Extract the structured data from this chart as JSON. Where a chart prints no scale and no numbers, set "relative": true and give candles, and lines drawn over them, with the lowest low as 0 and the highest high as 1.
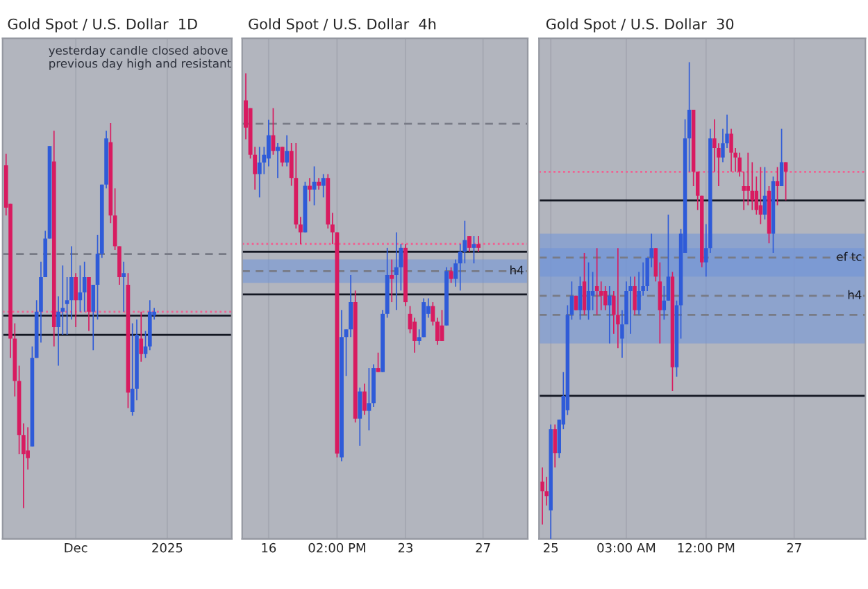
{
  "chart_data": [
    {
      "type": "candlestick",
      "title": "Gold Spot / U.S. Dollar  1D",
      "relative": true,
      "grid": "x",
      "colors": [
        "#d81b60",
        "#d81b60",
        "#d81b60",
        "#d81b60",
        "#d81b60",
        "#d81b60",
        "#2f5bd8",
        "#2f5bd8",
        "#2f5bd8",
        "#2f5bd8",
        "#2f5bd8",
        "#d81b60",
        "#2f5bd8",
        "#2f5bd8",
        "#2f5bd8",
        "#2f5bd8",
        "#d81b60",
        "#2f5bd8",
        "#2f5bd8",
        "#d81b60",
        "#2f5bd8",
        "#2f5bd8",
        "#2f5bd8",
        "#2f5bd8",
        "#d81b60",
        "#d81b60",
        "#d81b60",
        "#2f5bd8",
        "#d81b60",
        "#2f5bd8",
        "#2f5bd8",
        "#d81b60",
        "#2f5bd8",
        "#2f5bd8",
        "#2f5bd8",
        null,
        null,
        null,
        null,
        null,
        null,
        null,
        null,
        null,
        null,
        null,
        null,
        null,
        null,
        null,
        null,
        null
      ],
      "categories": [
        null,
        null,
        null,
        null,
        null,
        null,
        null,
        null,
        null,
        null,
        null,
        null,
        null,
        null,
        null,
        null,
        "Dec",
        null,
        null,
        null,
        null,
        null,
        null,
        null,
        null,
        null,
        null,
        null,
        null,
        null,
        null,
        null,
        null,
        null,
        null,
        null,
        null,
        "2025",
        null,
        null,
        null,
        null,
        null,
        null,
        null,
        null,
        null,
        null,
        null,
        null,
        null,
        null
      ],
      "ohlc": [
        [
          0.89,
          0.92,
          0.76,
          0.78
        ],
        [
          0.79,
          0.79,
          0.39,
          0.44
        ],
        [
          0.44,
          0.48,
          0.29,
          0.33
        ],
        [
          0.33,
          0.37,
          0.14,
          0.19
        ],
        [
          0.19,
          0.22,
          0.0,
          0.14
        ],
        [
          0.15,
          0.21,
          0.1,
          0.13
        ],
        [
          0.16,
          0.42,
          0.16,
          0.39
        ],
        [
          0.39,
          0.54,
          0.39,
          0.51
        ],
        [
          0.51,
          0.64,
          0.43,
          0.6
        ],
        [
          0.6,
          0.72,
          0.6,
          0.7
        ],
        [
          0.7,
          0.94,
          0.7,
          0.94
        ],
        [
          0.9,
          0.98,
          0.42,
          0.47
        ],
        [
          0.47,
          0.55,
          0.37,
          0.51
        ],
        [
          0.51,
          0.63,
          0.45,
          0.52
        ],
        [
          0.53,
          0.6,
          0.45,
          0.54
        ],
        [
          0.54,
          0.68,
          0.49,
          0.6
        ],
        [
          0.6,
          0.61,
          0.47,
          0.54
        ],
        [
          0.54,
          0.63,
          0.51,
          0.56
        ],
        [
          0.56,
          0.64,
          0.51,
          0.6
        ],
        [
          0.6,
          0.6,
          0.46,
          0.51
        ],
        [
          0.51,
          0.58,
          0.41,
          0.58
        ],
        [
          0.58,
          0.71,
          0.49,
          0.66
        ],
        [
          0.66,
          0.84,
          0.65,
          0.84
        ],
        [
          0.84,
          0.98,
          0.83,
          0.96
        ],
        [
          0.95,
          1.0,
          0.74,
          0.76
        ],
        [
          0.76,
          0.83,
          0.67,
          0.68
        ],
        [
          0.68,
          0.68,
          0.58,
          0.6
        ],
        [
          0.6,
          0.64,
          0.51,
          0.61
        ],
        [
          0.58,
          0.61,
          0.26,
          0.3
        ],
        [
          0.25,
          0.48,
          0.24,
          0.31
        ],
        [
          0.31,
          0.49,
          0.28,
          0.45
        ],
        [
          0.44,
          0.51,
          0.38,
          0.4
        ],
        [
          0.4,
          0.46,
          0.39,
          0.42
        ],
        [
          0.42,
          0.54,
          0.41,
          0.51
        ],
        [
          0.5,
          0.52,
          0.49,
          0.51
        ],
        null,
        null,
        null,
        null,
        null,
        null,
        null,
        null,
        null,
        null,
        null,
        null,
        null,
        null,
        null,
        null,
        null
      ],
      "ref_lines": [
        {
          "axis": "y",
          "value": 0.66,
          "color": "#787b86",
          "line_style": "dashed"
        },
        {
          "axis": "y",
          "value": 0.51,
          "color": "#f06292",
          "line_style": "dotted"
        },
        {
          "axis": "y",
          "value": 0.5,
          "color": "#131722",
          "line_style": "solid"
        },
        {
          "axis": "y",
          "value": 0.45,
          "color": "#131722",
          "line_style": "solid"
        }
      ],
      "annotations": [
        "yesterday candle closed above\nprevious day high and resistant"
      ]
    },
    {
      "type": "candlestick",
      "title": "Gold Spot / U.S. Dollar  4h",
      "relative": true,
      "grid": "x",
      "colors": [
        "#d81b60",
        "#d81b60",
        "#d81b60",
        "#2f5bd8",
        "#2f5bd8",
        "#2f5bd8",
        "#d81b60",
        "#2f5bd8",
        "#d81b60",
        "#2f5bd8",
        "#d81b60",
        "#d81b60",
        "#d81b60",
        "#2f5bd8",
        "#d81b60",
        "#2f5bd8",
        "#d81b60",
        "#2f5bd8",
        "#d81b60",
        "#d81b60",
        "#d81b60",
        "#2f5bd8",
        "#2f5bd8",
        "#2f5bd8",
        "#d81b60",
        "#2f5bd8",
        "#d81b60",
        "#2f5bd8",
        "#2f5bd8",
        "#d81b60",
        "#2f5bd8",
        "#2f5bd8",
        "#d81b60",
        "#2f5bd8",
        "#2f5bd8",
        "#d81b60",
        "#d81b60",
        "#d81b60",
        "#2f5bd8",
        "#2f5bd8",
        "#2f5bd8",
        "#d81b60",
        "#d81b60",
        "#d81b60",
        "#2f5bd8",
        "#d81b60",
        "#2f5bd8",
        "#2f5bd8",
        "#2f5bd8",
        "#d81b60",
        "#2f5bd8",
        "#d81b60",
        null,
        null,
        null,
        null,
        null,
        null,
        null,
        null,
        null,
        null
      ],
      "categories": [
        null,
        null,
        null,
        null,
        null,
        "16",
        null,
        null,
        null,
        null,
        null,
        null,
        null,
        null,
        null,
        null,
        null,
        null,
        null,
        null,
        "02:00 PM",
        null,
        null,
        null,
        null,
        null,
        null,
        null,
        null,
        null,
        null,
        null,
        null,
        null,
        null,
        "23",
        null,
        null,
        null,
        null,
        null,
        null,
        null,
        null,
        null,
        null,
        null,
        null,
        null,
        null,
        null,
        null,
        "27",
        null,
        null,
        null,
        null,
        null,
        null,
        null,
        null,
        null
      ],
      "ohlc": [
        [
          0.93,
          1.0,
          0.83,
          0.86
        ],
        [
          0.91,
          0.91,
          0.78,
          0.79
        ],
        [
          0.79,
          0.81,
          0.7,
          0.74
        ],
        [
          0.74,
          0.81,
          0.68,
          0.77
        ],
        [
          0.77,
          0.81,
          0.74,
          0.79
        ],
        [
          0.78,
          0.88,
          0.76,
          0.84
        ],
        [
          0.84,
          0.91,
          0.79,
          0.8
        ],
        [
          0.8,
          0.82,
          0.73,
          0.81
        ],
        [
          0.81,
          0.81,
          0.76,
          0.77
        ],
        [
          0.77,
          0.84,
          0.76,
          0.8
        ],
        [
          0.8,
          0.82,
          0.71,
          0.73
        ],
        [
          0.73,
          0.82,
          0.6,
          0.61
        ],
        [
          0.61,
          0.63,
          0.56,
          0.59
        ],
        [
          0.59,
          0.72,
          0.59,
          0.71
        ],
        [
          0.71,
          0.73,
          0.67,
          0.7
        ],
        [
          0.7,
          0.76,
          0.66,
          0.72
        ],
        [
          0.72,
          0.73,
          0.7,
          0.71
        ],
        [
          0.71,
          0.74,
          0.68,
          0.73
        ],
        [
          0.73,
          0.74,
          0.6,
          0.61
        ],
        [
          0.61,
          0.64,
          0.56,
          0.59
        ],
        [
          0.59,
          0.59,
          0.01,
          0.02
        ],
        [
          0.01,
          0.39,
          0.0,
          0.32
        ],
        [
          0.32,
          0.34,
          0.22,
          0.34
        ],
        [
          0.34,
          0.48,
          0.32,
          0.41
        ],
        [
          0.41,
          0.44,
          0.1,
          0.11
        ],
        [
          0.11,
          0.19,
          0.04,
          0.18
        ],
        [
          0.18,
          0.2,
          0.12,
          0.13
        ],
        [
          0.13,
          0.24,
          0.08,
          0.15
        ],
        [
          0.15,
          0.25,
          0.14,
          0.24
        ],
        [
          0.24,
          0.28,
          0.23,
          0.23
        ],
        [
          0.23,
          0.39,
          0.23,
          0.38
        ],
        [
          0.38,
          0.55,
          0.37,
          0.48
        ],
        [
          0.48,
          0.52,
          0.41,
          0.47
        ],
        [
          0.48,
          0.59,
          0.39,
          0.5
        ],
        [
          0.5,
          0.56,
          0.44,
          0.55
        ],
        [
          0.55,
          0.56,
          0.4,
          0.41
        ],
        [
          0.38,
          0.4,
          0.33,
          0.34
        ],
        [
          0.36,
          0.37,
          0.28,
          0.31
        ],
        [
          0.31,
          0.34,
          0.3,
          0.32
        ],
        [
          0.32,
          0.42,
          0.32,
          0.41
        ],
        [
          0.38,
          0.42,
          0.37,
          0.4
        ],
        [
          0.4,
          0.41,
          0.35,
          0.36
        ],
        [
          0.36,
          0.37,
          0.3,
          0.31
        ],
        [
          0.35,
          0.39,
          0.31,
          0.31
        ],
        [
          0.35,
          0.5,
          0.35,
          0.49
        ],
        [
          0.49,
          0.5,
          0.46,
          0.47
        ],
        [
          0.47,
          0.52,
          0.45,
          0.51
        ],
        [
          0.51,
          0.56,
          0.44,
          0.54
        ],
        [
          0.54,
          0.62,
          0.51,
          0.57
        ],
        [
          0.58,
          0.58,
          0.54,
          0.55
        ],
        [
          0.55,
          0.58,
          0.51,
          0.56
        ],
        [
          0.56,
          0.58,
          0.54,
          0.55
        ],
        null,
        null,
        null,
        null,
        null,
        null,
        null,
        null,
        null,
        null
      ],
      "ref_lines": [
        {
          "axis": "y",
          "value": 0.87,
          "color": "#787b86",
          "line_style": "dashed"
        },
        {
          "axis": "y",
          "value": 0.56,
          "color": "#f06292",
          "line_style": "dotted"
        },
        {
          "axis": "y",
          "value": 0.54,
          "color": "#131722",
          "line_style": "solid"
        },
        {
          "axis": "y",
          "value": 0.43,
          "color": "#131722",
          "line_style": "solid"
        },
        {
          "axis": "y",
          "value": 0.49,
          "color": "#787b86",
          "line_style": "dashed",
          "label": "h4"
        }
      ],
      "bands": [
        {
          "axis": "y",
          "from": 0.46,
          "to": 0.52,
          "color": "#6f93d8"
        }
      ]
    },
    {
      "type": "candlestick",
      "title": "Gold Spot / U.S. Dollar  30",
      "relative": true,
      "grid": "x",
      "colors": [
        "#d81b60",
        "#d81b60",
        "#2f5bd8",
        "#d81b60",
        "#2f5bd8",
        "#2f5bd8",
        "#2f5bd8",
        "#2f5bd8",
        "#d81b60",
        "#2f5bd8",
        "#d81b60",
        "#2f5bd8",
        "#2f5bd8",
        "#d81b60",
        "#d81b60",
        "#d81b60",
        "#2f5bd8",
        "#d81b60",
        "#d81b60",
        "#2f5bd8",
        "#2f5bd8",
        "#2f5bd8",
        "#d81b60",
        "#2f5bd8",
        "#2f5bd8",
        "#2f5bd8",
        "#2f5bd8",
        "#d81b60",
        "#d81b60",
        "#2f5bd8",
        "#2f5bd8",
        "#d81b60",
        "#2f5bd8",
        "#2f5bd8",
        "#2f5bd8",
        "#2f5bd8",
        "#d81b60",
        "#d81b60",
        "#d81b60",
        "#2f5bd8",
        "#2f5bd8",
        "#d81b60",
        "#d81b60",
        "#2f5bd8",
        "#2f5bd8",
        "#d81b60",
        "#d81b60",
        "#d81b60",
        "#d81b60",
        "#d81b60",
        "#d81b60",
        "#d81b60",
        "#d81b60",
        "#2f5bd8",
        "#d81b60",
        "#2f5bd8",
        "#d81b60",
        "#2f5bd8",
        "#d81b60",
        null,
        null
      ],
      "categories": [
        null,
        null,
        "25",
        null,
        null,
        null,
        null,
        null,
        null,
        null,
        null,
        null,
        null,
        null,
        null,
        null,
        null,
        null,
        null,
        null,
        "03:00 AM",
        null,
        null,
        null,
        null,
        null,
        null,
        null,
        null,
        null,
        null,
        null,
        null,
        null,
        null,
        null,
        null,
        null,
        null,
        "12:00 PM",
        null,
        null,
        null,
        null,
        null,
        null,
        null,
        null,
        null,
        null,
        null,
        null,
        null,
        null,
        null,
        null,
        null,
        null,
        null,
        null,
        "27"
      ],
      "ohlc": [
        [
          0.12,
          0.15,
          0.03,
          0.1
        ],
        [
          0.1,
          0.13,
          0.07,
          0.09
        ],
        [
          0.06,
          0.24,
          0.0,
          0.23
        ],
        [
          0.23,
          0.24,
          0.15,
          0.18
        ],
        [
          0.18,
          0.25,
          0.17,
          0.25
        ],
        [
          0.24,
          0.35,
          0.23,
          0.3
        ],
        [
          0.27,
          0.49,
          0.26,
          0.47
        ],
        [
          0.47,
          0.54,
          0.46,
          0.51
        ],
        [
          0.51,
          0.51,
          0.48,
          0.48
        ],
        [
          0.48,
          0.55,
          0.46,
          0.53
        ],
        [
          0.54,
          0.6,
          0.47,
          0.48
        ],
        [
          0.48,
          0.58,
          0.46,
          0.52
        ],
        [
          0.51,
          0.56,
          0.48,
          0.52
        ],
        [
          0.53,
          0.61,
          0.47,
          0.52
        ],
        [
          0.52,
          0.54,
          0.48,
          0.51
        ],
        [
          0.52,
          0.53,
          0.48,
          0.49
        ],
        [
          0.49,
          0.53,
          0.41,
          0.51
        ],
        [
          0.51,
          0.52,
          0.43,
          0.47
        ],
        [
          0.47,
          0.61,
          0.4,
          0.45
        ],
        [
          0.42,
          0.48,
          0.38,
          0.45
        ],
        [
          0.45,
          0.54,
          0.45,
          0.52
        ],
        [
          0.52,
          0.55,
          0.43,
          0.53
        ],
        [
          0.53,
          0.55,
          0.47,
          0.48
        ],
        [
          0.48,
          0.56,
          0.47,
          0.52
        ],
        [
          0.52,
          0.58,
          0.51,
          0.53
        ],
        [
          0.53,
          0.59,
          0.52,
          0.59
        ],
        [
          0.59,
          0.64,
          0.57,
          0.61
        ],
        [
          0.61,
          0.61,
          0.54,
          0.55
        ],
        [
          0.54,
          0.58,
          0.41,
          0.48
        ],
        [
          0.48,
          0.53,
          0.46,
          0.5
        ],
        [
          0.5,
          0.68,
          0.5,
          0.55
        ],
        [
          0.55,
          0.56,
          0.31,
          0.36
        ],
        [
          0.36,
          0.5,
          0.34,
          0.49
        ],
        [
          0.49,
          0.65,
          0.42,
          0.64
        ],
        [
          0.6,
          0.88,
          0.6,
          0.84
        ],
        [
          0.84,
          1.0,
          0.77,
          0.9
        ],
        [
          0.9,
          0.9,
          0.74,
          0.77
        ],
        [
          0.77,
          0.77,
          0.69,
          0.72
        ],
        [
          0.72,
          0.72,
          0.57,
          0.58
        ],
        [
          0.58,
          0.66,
          0.55,
          0.61
        ],
        [
          0.61,
          0.86,
          0.6,
          0.84
        ],
        [
          0.84,
          0.88,
          0.77,
          0.82
        ],
        [
          0.82,
          0.83,
          0.74,
          0.8
        ],
        [
          0.8,
          0.86,
          0.79,
          0.83
        ],
        [
          0.83,
          0.89,
          0.82,
          0.85
        ],
        [
          0.85,
          0.86,
          0.77,
          0.81
        ],
        [
          0.81,
          0.82,
          0.77,
          0.8
        ],
        [
          0.8,
          0.81,
          0.76,
          0.77
        ],
        [
          0.74,
          0.77,
          0.69,
          0.73
        ],
        [
          0.74,
          0.81,
          0.7,
          0.73
        ],
        [
          0.73,
          0.79,
          0.69,
          0.71
        ],
        [
          0.73,
          0.76,
          0.68,
          0.69
        ],
        [
          0.7,
          0.78,
          0.66,
          0.68
        ],
        [
          0.68,
          0.78,
          0.67,
          0.72
        ],
        [
          0.73,
          0.74,
          0.62,
          0.64
        ],
        [
          0.64,
          0.76,
          0.6,
          0.75
        ],
        [
          0.75,
          0.78,
          0.7,
          0.74
        ],
        [
          0.74,
          0.86,
          0.74,
          0.79
        ],
        [
          0.79,
          0.79,
          0.71,
          0.77
        ],
        null,
        null
      ],
      "ref_lines": [
        {
          "axis": "y",
          "value": 0.77,
          "color": "#f06292",
          "line_style": "dotted"
        },
        {
          "axis": "y",
          "value": 0.71,
          "color": "#131722",
          "line_style": "solid"
        },
        {
          "axis": "y",
          "value": 0.3,
          "color": "#131722",
          "line_style": "solid"
        },
        {
          "axis": "y",
          "value": 0.47,
          "color": "#787b86",
          "line_style": "dashed"
        },
        {
          "axis": "y",
          "value": 0.51,
          "color": "#787b86",
          "line_style": "dashed",
          "label": "h4"
        },
        {
          "axis": "y",
          "value": 0.59,
          "color": "#787b86",
          "line_style": "dashed",
          "label": "ef tc"
        }
      ],
      "bands": [
        {
          "axis": "y",
          "from": 0.41,
          "to": 0.61,
          "color": "#6f93d8"
        },
        {
          "axis": "y",
          "from": 0.55,
          "to": 0.64,
          "color": "#6f93d8"
        }
      ]
    }
  ]
}
